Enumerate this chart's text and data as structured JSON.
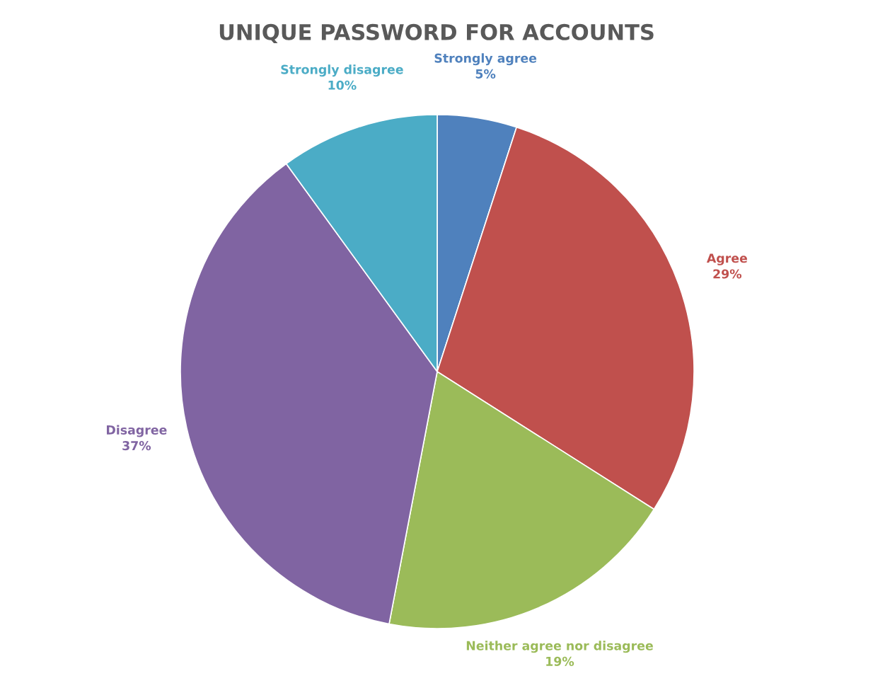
{
  "chart_data": {
    "type": "pie",
    "title": "UNIQUE PASSWORD FOR ACCOUNTS",
    "categories": [
      "Strongly agree",
      "Agree",
      "Neither agree nor disagree",
      "Disagree",
      "Strongly disagree"
    ],
    "values": [
      5,
      29,
      19,
      37,
      10
    ],
    "value_labels": [
      "5%",
      "29%",
      "19%",
      "37%",
      "10%"
    ],
    "colors": [
      "#4f81bd",
      "#c0504d",
      "#9bbb59",
      "#8064a2",
      "#4bacc6"
    ],
    "legend": false
  }
}
